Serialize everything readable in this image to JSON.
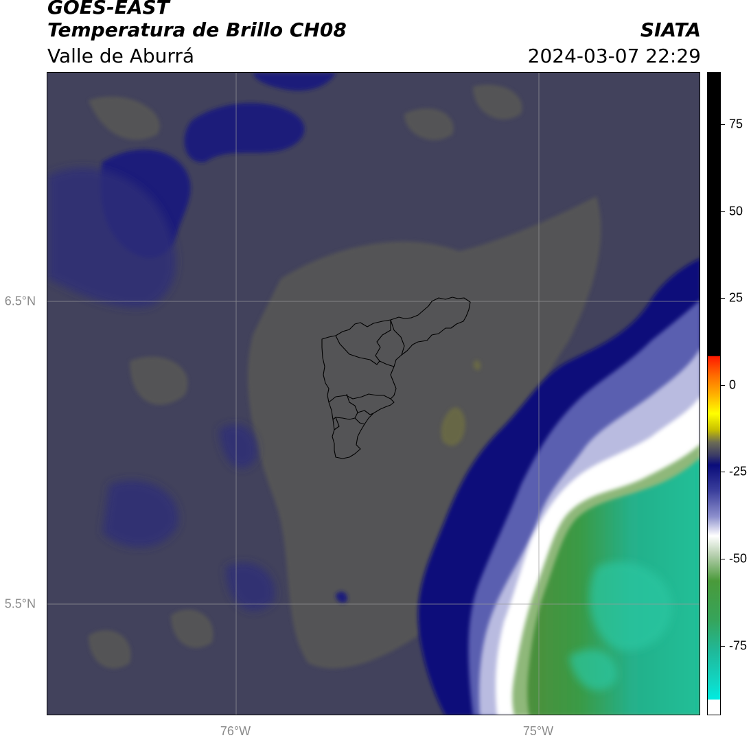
{
  "header": {
    "title_line_1": "GOES-EAST",
    "title_line_2": "Temperatura de Brillo CH08",
    "title_line_3": "Valle de Aburrá",
    "right_line_1": "SIATA",
    "right_line_2": "2024-03-07 22:29"
  },
  "map": {
    "lat_labels": [
      "6.5°N",
      "5.5°N"
    ],
    "lon_labels": [
      "76°W",
      "75°W"
    ],
    "gridlines": true
  },
  "colorbar": {
    "range": [
      -95,
      90
    ],
    "ticks": [
      75,
      50,
      25,
      0,
      -25,
      -50,
      -75
    ],
    "tick_labels": [
      "75",
      "50",
      "25",
      "0",
      "-25",
      "-50",
      "-75"
    ]
  },
  "colors": {
    "background_field": "#42425c",
    "warm_patches": "#5c5c55",
    "cold_blue": "#0b0e78",
    "cloud_white": "#ffffff",
    "cloud_green": "#3c9a3c",
    "cloud_teal": "#20bf9a",
    "boundary_lines": "#000000"
  }
}
